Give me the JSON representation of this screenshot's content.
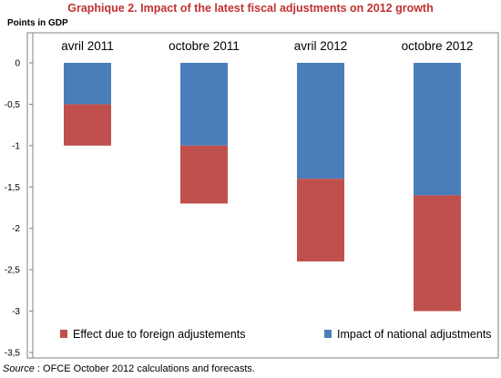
{
  "page": {
    "title": "Graphique 2. Impact of the latest fiscal adjustments on 2012 growth",
    "unit_label": "Points in GDP",
    "source_lead": "Source",
    "source_text": " : OFCE October 2012 calculations and forecasts."
  },
  "chart_data": {
    "type": "bar",
    "stacked": true,
    "categories": [
      "avril 2011",
      "octobre 2011",
      "avril 2012",
      "octobre 2012"
    ],
    "series": [
      {
        "name": "Impact of national adjustments",
        "color": "#4a7ebb",
        "values": [
          -0.5,
          -1.0,
          -1.4,
          -1.6
        ]
      },
      {
        "name": "Effect due to foreign adjustements",
        "color": "#c0504d",
        "values": [
          -0.5,
          -0.7,
          -1.0,
          -1.4
        ]
      }
    ],
    "ylim": [
      -3.5,
      0
    ],
    "yticks": [
      0,
      -0.5,
      -1,
      -1.5,
      -2,
      -2.5,
      -3,
      -3.5
    ],
    "ytick_labels": [
      "0",
      "-0,5",
      "-1",
      "-1,5",
      "-2",
      "-2,5",
      "-3",
      "-3,5"
    ],
    "category_label_position": "top",
    "grid": false,
    "legend": "bottom"
  }
}
